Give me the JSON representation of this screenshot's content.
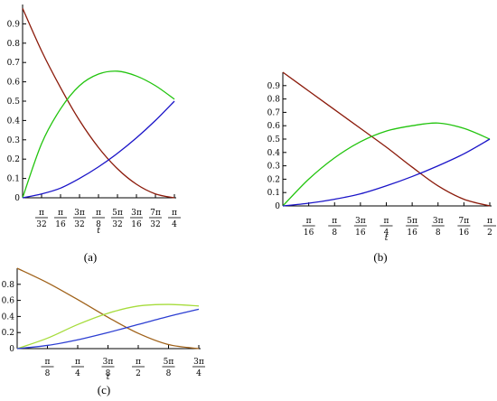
{
  "chart_data": [
    {
      "type": "line",
      "caption": "(a)",
      "xlabel": "t",
      "x_range_rad": [
        0,
        0.7853981634
      ],
      "ylim": [
        0,
        1
      ],
      "y_ticks": [
        "0",
        "0.1",
        "0.2",
        "0.3",
        "0.4",
        "0.5",
        "0.6",
        "0.7",
        "0.8",
        "0.9"
      ],
      "y_tick_values": [
        0,
        0.1,
        0.2,
        0.3,
        0.4,
        0.5,
        0.6,
        0.7,
        0.8,
        0.9
      ],
      "x_ticks": [
        {
          "num": "π",
          "den": "32",
          "value": 0.0981748
        },
        {
          "num": "π",
          "den": "16",
          "value": 0.1963495
        },
        {
          "num": "3π",
          "den": "32",
          "value": 0.2945243
        },
        {
          "num": "π",
          "den": "8",
          "value": 0.3926991
        },
        {
          "num": "5π",
          "den": "32",
          "value": 0.4908739
        },
        {
          "num": "3π",
          "den": "16",
          "value": 0.5890486
        },
        {
          "num": "7π",
          "den": "32",
          "value": 0.6872234
        },
        {
          "num": "π",
          "den": "4",
          "value": 0.7853982
        }
      ],
      "x": [
        0,
        0.0981748,
        0.1963495,
        0.2945243,
        0.3926991,
        0.4908739,
        0.5890486,
        0.6872234,
        0.7853982
      ],
      "series": [
        {
          "color": "#8b1a0a",
          "values": [
            0.98,
            0.76,
            0.57,
            0.4,
            0.26,
            0.15,
            0.07,
            0.02,
            0.0
          ]
        },
        {
          "color": "#22c40e",
          "values": [
            0.0,
            0.28,
            0.46,
            0.58,
            0.64,
            0.655,
            0.63,
            0.58,
            0.51
          ]
        },
        {
          "color": "#1a14c8",
          "values": [
            0.0,
            0.02,
            0.05,
            0.1,
            0.16,
            0.23,
            0.31,
            0.4,
            0.5
          ]
        }
      ]
    },
    {
      "type": "line",
      "caption": "(b)",
      "xlabel": "t",
      "x_range_rad": [
        0,
        1.5707963268
      ],
      "ylim": [
        0,
        1
      ],
      "y_ticks": [
        "0",
        "0.1",
        "0.2",
        "0.3",
        "0.4",
        "0.5",
        "0.6",
        "0.7",
        "0.8",
        "0.9"
      ],
      "y_tick_values": [
        0,
        0.1,
        0.2,
        0.3,
        0.4,
        0.5,
        0.6,
        0.7,
        0.8,
        0.9
      ],
      "x_ticks": [
        {
          "num": "π",
          "den": "16",
          "value": 0.1963495
        },
        {
          "num": "π",
          "den": "8",
          "value": 0.3926991
        },
        {
          "num": "3π",
          "den": "16",
          "value": 0.5890486
        },
        {
          "num": "π",
          "den": "4",
          "value": 0.7853982
        },
        {
          "num": "5π",
          "den": "16",
          "value": 0.9817477
        },
        {
          "num": "3π",
          "den": "8",
          "value": 1.1780972
        },
        {
          "num": "7π",
          "den": "16",
          "value": 1.3744468
        },
        {
          "num": "π",
          "den": "2",
          "value": 1.5707963
        }
      ],
      "x": [
        0,
        0.1963495,
        0.3926991,
        0.5890486,
        0.7853982,
        0.9817477,
        1.1780972,
        1.3744468,
        1.5707963
      ],
      "series": [
        {
          "color": "#8b1a0a",
          "values": [
            1.0,
            0.86,
            0.72,
            0.58,
            0.44,
            0.29,
            0.15,
            0.05,
            0.0
          ]
        },
        {
          "color": "#22c40e",
          "values": [
            0.0,
            0.2,
            0.36,
            0.48,
            0.56,
            0.6,
            0.62,
            0.58,
            0.5
          ]
        },
        {
          "color": "#1a14c8",
          "values": [
            0.0,
            0.02,
            0.05,
            0.09,
            0.15,
            0.22,
            0.3,
            0.39,
            0.5
          ]
        }
      ]
    },
    {
      "type": "line",
      "caption": "(c)",
      "xlabel": "t",
      "x_range_rad": [
        0,
        2.3561944902
      ],
      "ylim": [
        0,
        1
      ],
      "y_ticks": [
        "0",
        "0.2",
        "0.4",
        "0.6",
        "0.8"
      ],
      "y_tick_values": [
        0,
        0.2,
        0.4,
        0.6,
        0.8
      ],
      "x_ticks": [
        {
          "num": "π",
          "den": "8",
          "value": 0.3926991
        },
        {
          "num": "π",
          "den": "4",
          "value": 0.7853982
        },
        {
          "num": "3π",
          "den": "8",
          "value": 1.1780972
        },
        {
          "num": "π",
          "den": "2",
          "value": 1.5707963
        },
        {
          "num": "5π",
          "den": "8",
          "value": 1.9634954
        },
        {
          "num": "3π",
          "den": "4",
          "value": 2.3561945
        }
      ],
      "x": [
        0,
        0.3926991,
        0.7853982,
        1.1780972,
        1.5707963,
        1.9634954,
        2.3561945
      ],
      "series": [
        {
          "color": "#a0621a",
          "values": [
            1.0,
            0.82,
            0.61,
            0.39,
            0.19,
            0.05,
            0.0
          ]
        },
        {
          "color": "#a6dc3c",
          "values": [
            0.0,
            0.13,
            0.3,
            0.44,
            0.53,
            0.55,
            0.53
          ]
        },
        {
          "color": "#2c3ed2",
          "values": [
            0.0,
            0.04,
            0.11,
            0.2,
            0.3,
            0.4,
            0.49
          ]
        }
      ]
    }
  ]
}
